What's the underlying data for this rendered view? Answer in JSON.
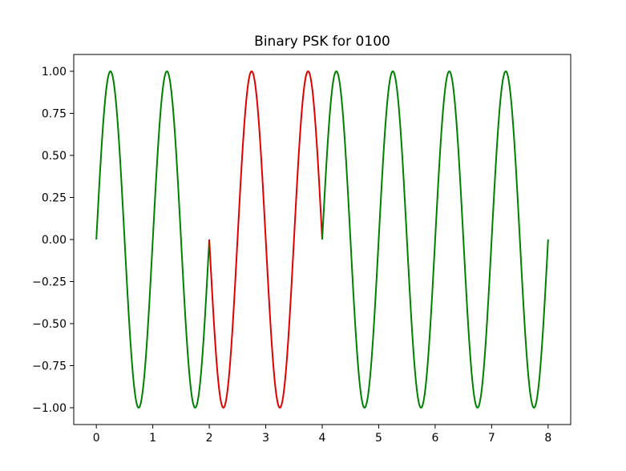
{
  "chart_data": {
    "type": "line",
    "title": "Binary PSK for 0100",
    "xlabel": "",
    "ylabel": "",
    "xlim": [
      -0.4,
      8.4
    ],
    "ylim": [
      -1.1,
      1.1
    ],
    "x_ticks": [
      {
        "value": 0,
        "label": "0"
      },
      {
        "value": 1,
        "label": "1"
      },
      {
        "value": 2,
        "label": "2"
      },
      {
        "value": 3,
        "label": "3"
      },
      {
        "value": 4,
        "label": "4"
      },
      {
        "value": 5,
        "label": "5"
      },
      {
        "value": 6,
        "label": "6"
      },
      {
        "value": 7,
        "label": "7"
      },
      {
        "value": 8,
        "label": "8"
      }
    ],
    "y_ticks": [
      {
        "value": 1.0,
        "label": "1.00"
      },
      {
        "value": 0.75,
        "label": "0.75"
      },
      {
        "value": 0.5,
        "label": "0.50"
      },
      {
        "value": 0.25,
        "label": "0.25"
      },
      {
        "value": 0.0,
        "label": "0.00"
      },
      {
        "value": -0.25,
        "label": "−0.25"
      },
      {
        "value": -0.5,
        "label": "−0.50"
      },
      {
        "value": -0.75,
        "label": "−0.75"
      },
      {
        "value": -1.0,
        "label": "−1.00"
      }
    ],
    "grid": false,
    "legend": "none",
    "series": [
      {
        "x_start": 0,
        "x_end": 2,
        "function": "sin(2*pi*x)",
        "color": "#008000"
      },
      {
        "x_start": 2,
        "x_end": 4,
        "function": "-sin(2*pi*x)",
        "color": "#e00000"
      },
      {
        "x_start": 4,
        "x_end": 8,
        "function": "sin(2*pi*x)",
        "color": "#008000"
      }
    ]
  }
}
